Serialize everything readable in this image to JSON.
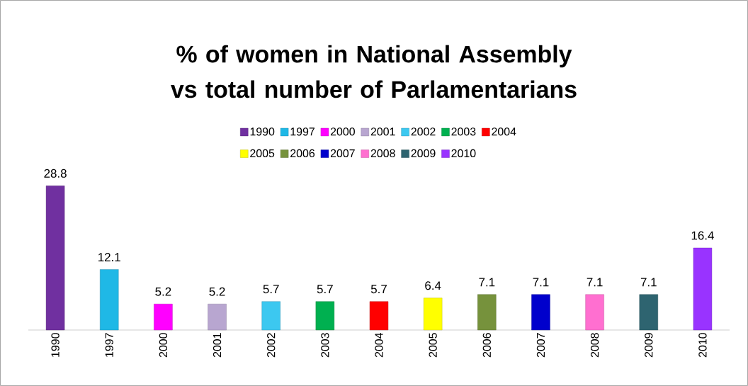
{
  "chart_data": {
    "type": "bar",
    "title": "% of women in National Assembly vs total number of Parlamentarians",
    "categories": [
      "1990",
      "1997",
      "2000",
      "2001",
      "2002",
      "2003",
      "2004",
      "2005",
      "2006",
      "2007",
      "2008",
      "2009",
      "2010"
    ],
    "series": [
      {
        "name": "1990",
        "color": "#7030a0",
        "values": [
          28.8,
          null,
          null,
          null,
          null,
          null,
          null,
          null,
          null,
          null,
          null,
          null,
          null
        ]
      },
      {
        "name": "1997",
        "color": "#1fb8e6",
        "values": [
          null,
          12.1,
          null,
          null,
          null,
          null,
          null,
          null,
          null,
          null,
          null,
          null,
          null
        ]
      },
      {
        "name": "2000",
        "color": "#ff00ff",
        "values": [
          null,
          null,
          5.2,
          null,
          null,
          null,
          null,
          null,
          null,
          null,
          null,
          null,
          null
        ]
      },
      {
        "name": "2001",
        "color": "#b8a6d0",
        "values": [
          null,
          null,
          null,
          5.2,
          null,
          null,
          null,
          null,
          null,
          null,
          null,
          null,
          null
        ]
      },
      {
        "name": "2002",
        "color": "#3cc8f0",
        "values": [
          null,
          null,
          null,
          null,
          5.7,
          null,
          null,
          null,
          null,
          null,
          null,
          null,
          null
        ]
      },
      {
        "name": "2003",
        "color": "#00b050",
        "values": [
          null,
          null,
          null,
          null,
          null,
          5.7,
          null,
          null,
          null,
          null,
          null,
          null,
          null
        ]
      },
      {
        "name": "2004",
        "color": "#ff0000",
        "values": [
          null,
          null,
          null,
          null,
          null,
          null,
          5.7,
          null,
          null,
          null,
          null,
          null,
          null
        ]
      },
      {
        "name": "2005",
        "color": "#ffff00",
        "values": [
          null,
          null,
          null,
          null,
          null,
          null,
          null,
          6.4,
          null,
          null,
          null,
          null,
          null
        ]
      },
      {
        "name": "2006",
        "color": "#76923c",
        "values": [
          null,
          null,
          null,
          null,
          null,
          null,
          null,
          null,
          7.1,
          null,
          null,
          null,
          null
        ]
      },
      {
        "name": "2007",
        "color": "#0000cc",
        "values": [
          null,
          null,
          null,
          null,
          null,
          null,
          null,
          null,
          null,
          7.1,
          null,
          null,
          null
        ]
      },
      {
        "name": "2008",
        "color": "#ff6fd0",
        "values": [
          null,
          null,
          null,
          null,
          null,
          null,
          null,
          null,
          null,
          null,
          7.1,
          null,
          null
        ]
      },
      {
        "name": "2009",
        "color": "#2e6470",
        "values": [
          null,
          null,
          null,
          null,
          null,
          null,
          null,
          null,
          null,
          null,
          null,
          7.1,
          null
        ]
      },
      {
        "name": "2010",
        "color": "#9933ff",
        "values": [
          null,
          null,
          null,
          null,
          null,
          null,
          null,
          null,
          null,
          null,
          null,
          null,
          16.4
        ]
      }
    ],
    "data_labels": true,
    "legend": "top"
  }
}
